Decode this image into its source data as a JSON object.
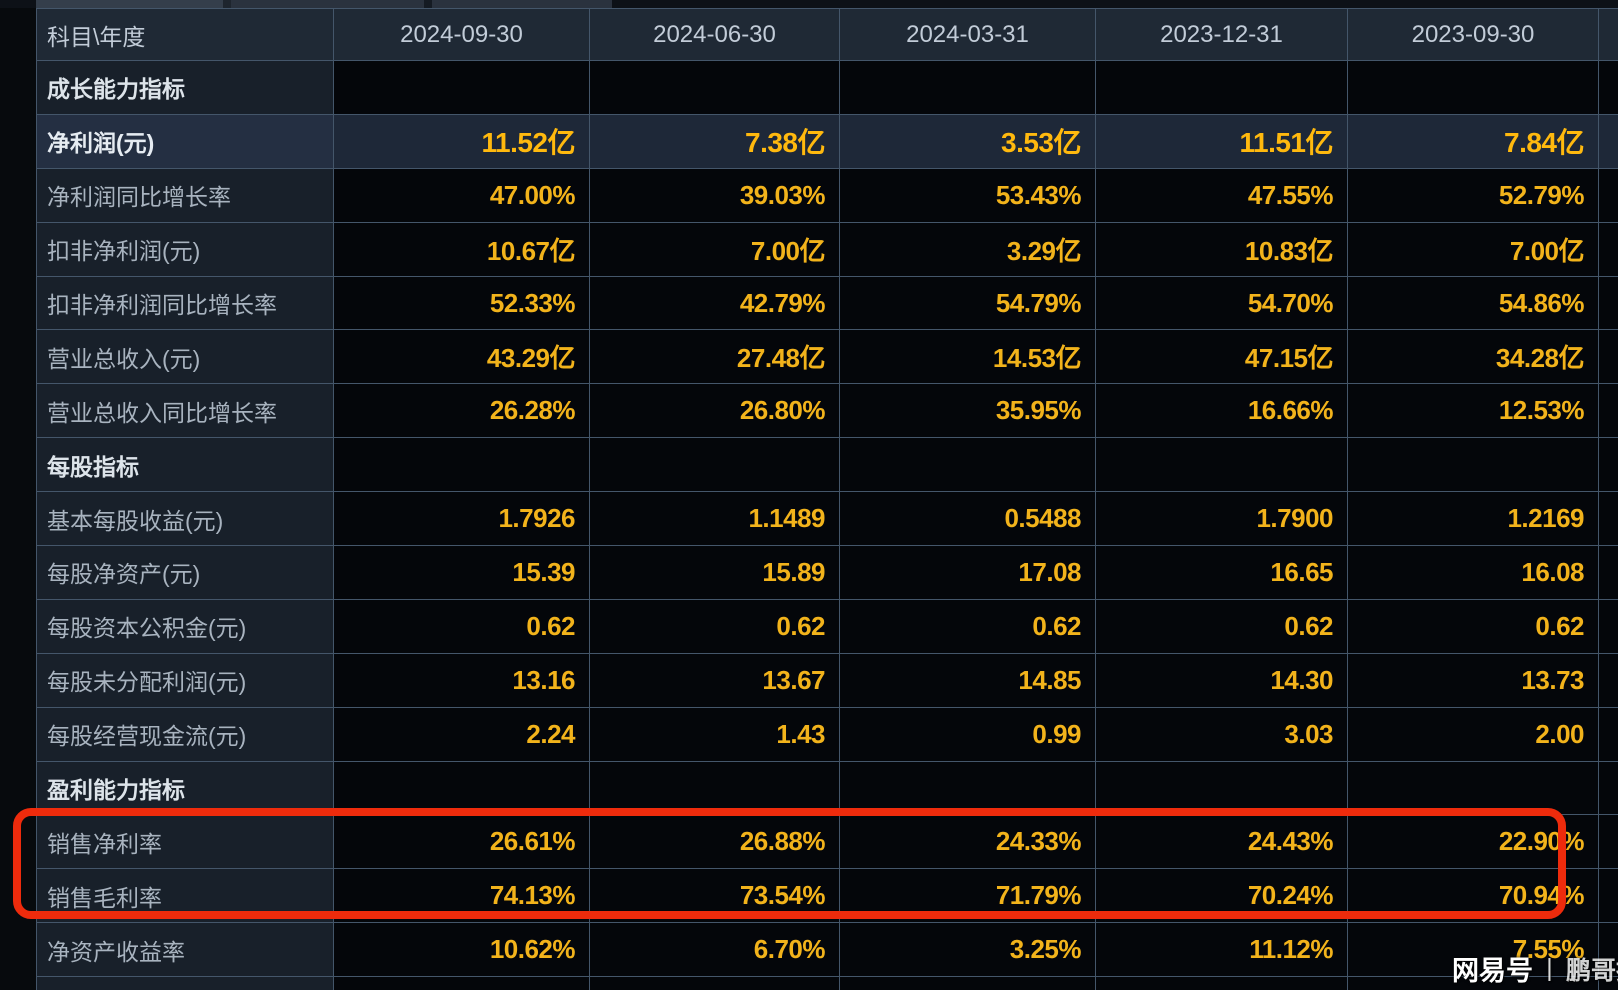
{
  "colors": {
    "highlight_box_red": "#ee2b0c",
    "value_yellow": "#f2b31b",
    "highlight_value_yellow": "#ffb90e"
  },
  "watermark": {
    "brand": "网易号",
    "separator": "丨",
    "author": "鹏哥投研"
  },
  "table": {
    "columns": [
      "科目\\年度",
      "2024-09-30",
      "2024-06-30",
      "2024-03-31",
      "2023-12-31",
      "2023-09-30"
    ],
    "rows": [
      {
        "type": "section",
        "label": "成长能力指标",
        "values": [
          "",
          "",
          "",
          "",
          ""
        ]
      },
      {
        "type": "highlight",
        "label": "净利润(元)",
        "values": [
          "11.52亿",
          "7.38亿",
          "3.53亿",
          "11.51亿",
          "7.84亿"
        ]
      },
      {
        "type": "normal",
        "label": "净利润同比增长率",
        "values": [
          "47.00%",
          "39.03%",
          "53.43%",
          "47.55%",
          "52.79%"
        ]
      },
      {
        "type": "normal",
        "label": "扣非净利润(元)",
        "values": [
          "10.67亿",
          "7.00亿",
          "3.29亿",
          "10.83亿",
          "7.00亿"
        ]
      },
      {
        "type": "normal",
        "label": "扣非净利润同比增长率",
        "values": [
          "52.33%",
          "42.79%",
          "54.79%",
          "54.70%",
          "54.86%"
        ]
      },
      {
        "type": "normal",
        "label": "营业总收入(元)",
        "values": [
          "43.29亿",
          "27.48亿",
          "14.53亿",
          "47.15亿",
          "34.28亿"
        ]
      },
      {
        "type": "normal",
        "label": "营业总收入同比增长率",
        "values": [
          "26.28%",
          "26.80%",
          "35.95%",
          "16.66%",
          "12.53%"
        ]
      },
      {
        "type": "section",
        "label": "每股指标",
        "values": [
          "",
          "",
          "",
          "",
          ""
        ]
      },
      {
        "type": "normal",
        "label": "基本每股收益(元)",
        "values": [
          "1.7926",
          "1.1489",
          "0.5488",
          "1.7900",
          "1.2169"
        ]
      },
      {
        "type": "normal",
        "label": "每股净资产(元)",
        "values": [
          "15.39",
          "15.89",
          "17.08",
          "16.65",
          "16.08"
        ]
      },
      {
        "type": "normal",
        "label": "每股资本公积金(元)",
        "values": [
          "0.62",
          "0.62",
          "0.62",
          "0.62",
          "0.62"
        ]
      },
      {
        "type": "normal",
        "label": "每股未分配利润(元)",
        "values": [
          "13.16",
          "13.67",
          "14.85",
          "14.30",
          "13.73"
        ]
      },
      {
        "type": "normal",
        "label": "每股经营现金流(元)",
        "values": [
          "2.24",
          "1.43",
          "0.99",
          "3.03",
          "2.00"
        ]
      },
      {
        "type": "section",
        "label": "盈利能力指标",
        "values": [
          "",
          "",
          "",
          "",
          ""
        ]
      },
      {
        "type": "normal",
        "label": "销售净利率",
        "values": [
          "26.61%",
          "26.88%",
          "24.33%",
          "24.43%",
          "22.90%"
        ]
      },
      {
        "type": "normal",
        "label": "销售毛利率",
        "values": [
          "74.13%",
          "73.54%",
          "71.79%",
          "70.24%",
          "70.94%"
        ]
      },
      {
        "type": "normal",
        "label": "净资产收益率",
        "values": [
          "10.62%",
          "6.70%",
          "3.25%",
          "11.12%",
          "7.55%"
        ]
      },
      {
        "type": "partial",
        "label": "",
        "values": [
          "",
          "",
          "",
          "",
          ""
        ]
      }
    ]
  },
  "annotation_box": {
    "highlighted_rows": [
      "销售净利率",
      "销售毛利率"
    ]
  }
}
